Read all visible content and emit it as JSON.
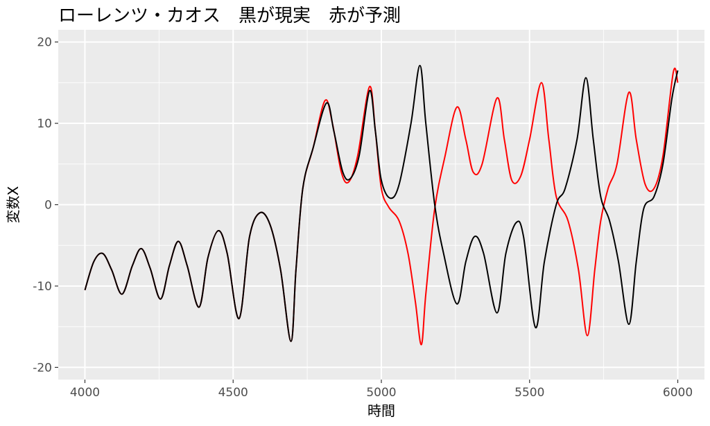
{
  "chart_data": {
    "type": "line",
    "title": "ローレンツ・カオス　黒が現実　赤が予測",
    "xlabel": "時間",
    "ylabel": "変数X",
    "xlim": [
      3910,
      6090
    ],
    "ylim": [
      -21.5,
      21.5
    ],
    "x_ticks": [
      4000,
      4500,
      5000,
      5500,
      6000
    ],
    "y_ticks": [
      -20,
      -10,
      0,
      10,
      20
    ],
    "x_tick_labels": [
      "4000",
      "4500",
      "5000",
      "5500",
      "6000"
    ],
    "y_tick_labels": [
      "-20",
      "-10",
      "0",
      "10",
      "20"
    ],
    "grid": true,
    "panel_background": "#EBEBEB",
    "series": [
      {
        "color": "#FF0000",
        "points": [
          [
            4000,
            -10.5
          ],
          [
            4030,
            -7
          ],
          [
            4060,
            -6
          ],
          [
            4090,
            -8
          ],
          [
            4125,
            -11
          ],
          [
            4160,
            -7.5
          ],
          [
            4190,
            -5.4
          ],
          [
            4220,
            -7.8
          ],
          [
            4255,
            -11.6
          ],
          [
            4285,
            -7.5
          ],
          [
            4315,
            -4.5
          ],
          [
            4345,
            -7.5
          ],
          [
            4385,
            -12.6
          ],
          [
            4415,
            -6.5
          ],
          [
            4450,
            -3.2
          ],
          [
            4480,
            -6
          ],
          [
            4520,
            -14
          ],
          [
            4555,
            -4
          ],
          [
            4590,
            -1
          ],
          [
            4625,
            -2.5
          ],
          [
            4660,
            -8
          ],
          [
            4695,
            -16.8
          ],
          [
            4712,
            -8
          ],
          [
            4735,
            2
          ],
          [
            4770,
            7
          ],
          [
            4810,
            12.8
          ],
          [
            4835,
            10
          ],
          [
            4865,
            4
          ],
          [
            4890,
            2.8
          ],
          [
            4920,
            6
          ],
          [
            4960,
            14.5
          ],
          [
            4980,
            9
          ],
          [
            5000,
            2
          ],
          [
            5025,
            -0.3
          ],
          [
            5060,
            -2
          ],
          [
            5090,
            -6
          ],
          [
            5115,
            -12
          ],
          [
            5135,
            -17.2
          ],
          [
            5150,
            -11
          ],
          [
            5180,
            -0.5
          ],
          [
            5215,
            6
          ],
          [
            5255,
            12
          ],
          [
            5285,
            8
          ],
          [
            5310,
            4
          ],
          [
            5340,
            5
          ],
          [
            5390,
            13.1
          ],
          [
            5415,
            8
          ],
          [
            5440,
            3
          ],
          [
            5470,
            3.5
          ],
          [
            5500,
            8
          ],
          [
            5540,
            15
          ],
          [
            5565,
            8
          ],
          [
            5590,
            1
          ],
          [
            5630,
            -2
          ],
          [
            5665,
            -8
          ],
          [
            5695,
            -16.1
          ],
          [
            5720,
            -8
          ],
          [
            5740,
            -2
          ],
          [
            5765,
            2
          ],
          [
            5795,
            5
          ],
          [
            5835,
            13.8
          ],
          [
            5860,
            8
          ],
          [
            5890,
            2.5
          ],
          [
            5920,
            2
          ],
          [
            5950,
            6
          ],
          [
            5985,
            16.3
          ],
          [
            6000,
            15
          ]
        ]
      },
      {
        "color": "#000000",
        "points": [
          [
            4000,
            -10.5
          ],
          [
            4030,
            -7
          ],
          [
            4060,
            -6
          ],
          [
            4090,
            -8
          ],
          [
            4125,
            -11
          ],
          [
            4160,
            -7.5
          ],
          [
            4190,
            -5.4
          ],
          [
            4220,
            -7.8
          ],
          [
            4255,
            -11.6
          ],
          [
            4285,
            -7.5
          ],
          [
            4315,
            -4.5
          ],
          [
            4345,
            -7.5
          ],
          [
            4385,
            -12.6
          ],
          [
            4415,
            -6.5
          ],
          [
            4450,
            -3.2
          ],
          [
            4480,
            -6
          ],
          [
            4520,
            -14
          ],
          [
            4555,
            -4
          ],
          [
            4590,
            -1
          ],
          [
            4625,
            -2.5
          ],
          [
            4660,
            -8
          ],
          [
            4695,
            -16.8
          ],
          [
            4712,
            -8
          ],
          [
            4735,
            2
          ],
          [
            4770,
            7
          ],
          [
            4815,
            12.5
          ],
          [
            4840,
            9
          ],
          [
            4870,
            4
          ],
          [
            4895,
            3.2
          ],
          [
            4925,
            6
          ],
          [
            4960,
            14
          ],
          [
            4980,
            9
          ],
          [
            5000,
            3
          ],
          [
            5030,
            0.8
          ],
          [
            5060,
            2.5
          ],
          [
            5100,
            10
          ],
          [
            5130,
            17.1
          ],
          [
            5150,
            10
          ],
          [
            5180,
            0
          ],
          [
            5210,
            -6
          ],
          [
            5255,
            -12.2
          ],
          [
            5285,
            -7
          ],
          [
            5315,
            -3.9
          ],
          [
            5345,
            -6
          ],
          [
            5390,
            -13.3
          ],
          [
            5420,
            -6
          ],
          [
            5455,
            -2.2
          ],
          [
            5480,
            -4
          ],
          [
            5520,
            -15.1
          ],
          [
            5550,
            -7
          ],
          [
            5590,
            0
          ],
          [
            5620,
            2
          ],
          [
            5660,
            8
          ],
          [
            5690,
            15.6
          ],
          [
            5715,
            8
          ],
          [
            5740,
            1
          ],
          [
            5770,
            -2
          ],
          [
            5800,
            -7
          ],
          [
            5835,
            -14.7
          ],
          [
            5860,
            -7
          ],
          [
            5885,
            -0.5
          ],
          [
            5920,
            1
          ],
          [
            5950,
            5
          ],
          [
            5980,
            13
          ],
          [
            6000,
            16.5
          ]
        ]
      }
    ]
  }
}
